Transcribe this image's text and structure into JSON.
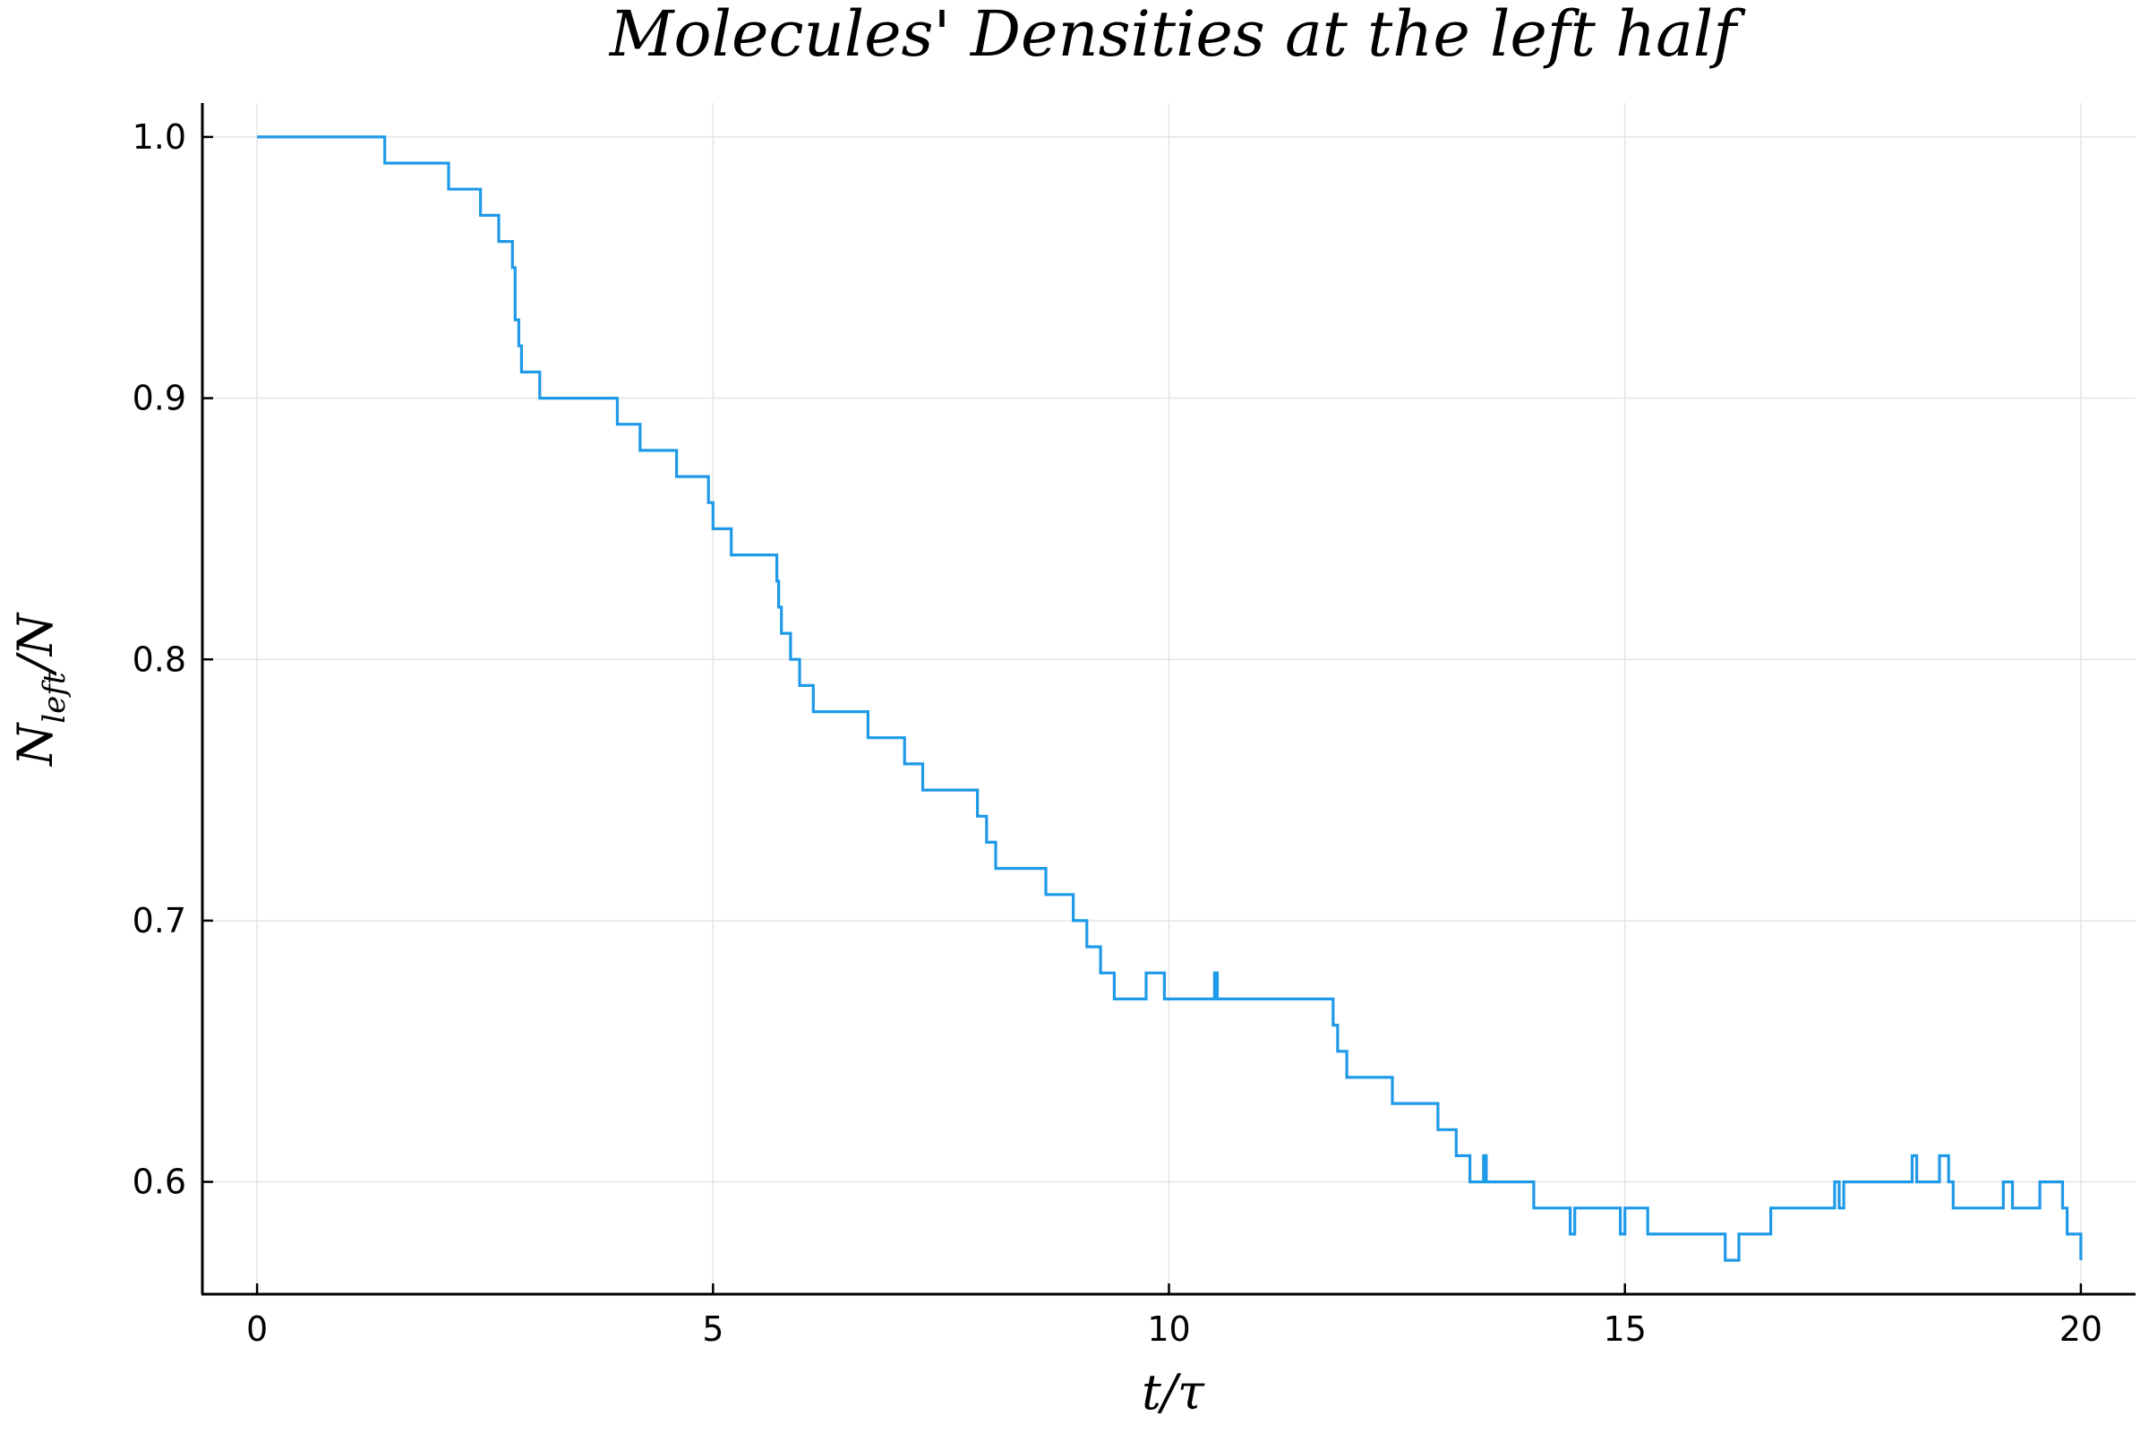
{
  "chart_data": {
    "type": "line",
    "step": true,
    "title": "Molecules' Densities at the left half",
    "xlabel": "t/τ",
    "ylabel": {
      "main": "N",
      "subscript": "left",
      "suffix": "/N"
    },
    "xlim": [
      -0.6,
      20.6
    ],
    "ylim": [
      0.557,
      1.013
    ],
    "xticks": [
      0,
      5,
      10,
      15,
      20
    ],
    "xtick_labels": [
      "0",
      "5",
      "10",
      "15",
      "20"
    ],
    "yticks": [
      0.6,
      0.7,
      0.8,
      0.9,
      1.0
    ],
    "ytick_labels": [
      "0.6",
      "0.7",
      "0.8",
      "0.9",
      "1.0"
    ],
    "grid": true,
    "line_color": "#1f9ae8",
    "series": [
      {
        "x": [
          0,
          1.4,
          2.1,
          2.45,
          2.65,
          2.8,
          2.83,
          2.87,
          2.9,
          3.0,
          3.1,
          3.95,
          4.2,
          4.6,
          4.95,
          5.0,
          5.2,
          5.7,
          5.72,
          5.75,
          5.85,
          5.95,
          6.1,
          6.65,
          6.7,
          7.1,
          7.3,
          7.9,
          8.0,
          8.1,
          8.65,
          8.95,
          9.1,
          9.25,
          9.4,
          9.75,
          9.95,
          10.5,
          10.53,
          10.55,
          10.65,
          11.8,
          11.85,
          11.95,
          12.45,
          12.95,
          13.15,
          13.3,
          13.45,
          13.48,
          14.0,
          14.4,
          14.45,
          14.5,
          14.95,
          15.0,
          15.1,
          15.25,
          16.1,
          16.25,
          16.6,
          17.3,
          17.35,
          17.4,
          18.15,
          18.2,
          18.45,
          18.55,
          18.6,
          19.15,
          19.25,
          19.55,
          19.8,
          19.85,
          19.9,
          20.0
        ],
        "y": [
          1.0,
          0.99,
          0.98,
          0.97,
          0.96,
          0.95,
          0.93,
          0.92,
          0.91,
          0.91,
          0.9,
          0.89,
          0.88,
          0.87,
          0.86,
          0.85,
          0.84,
          0.83,
          0.82,
          0.81,
          0.8,
          0.79,
          0.78,
          0.78,
          0.77,
          0.76,
          0.75,
          0.74,
          0.73,
          0.72,
          0.71,
          0.7,
          0.69,
          0.68,
          0.67,
          0.68,
          0.67,
          0.68,
          0.67,
          0.67,
          0.67,
          0.66,
          0.65,
          0.64,
          0.63,
          0.62,
          0.61,
          0.6,
          0.61,
          0.6,
          0.59,
          0.58,
          0.59,
          0.59,
          0.58,
          0.59,
          0.59,
          0.58,
          0.57,
          0.58,
          0.59,
          0.6,
          0.59,
          0.6,
          0.61,
          0.6,
          0.61,
          0.6,
          0.59,
          0.6,
          0.59,
          0.6,
          0.59,
          0.58,
          0.58,
          0.57
        ]
      }
    ]
  }
}
